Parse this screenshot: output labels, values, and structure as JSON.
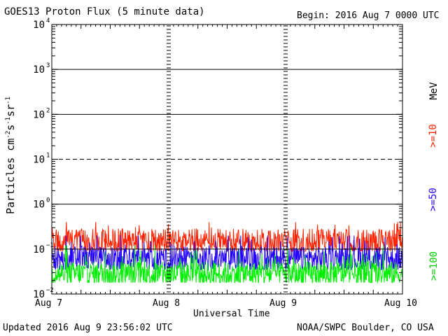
{
  "header": {
    "title": "GOES13 Proton Flux (5 minute data)",
    "begin": "Begin: 2016 Aug 7 0000 UTC"
  },
  "footer": {
    "updated": "Updated 2016 Aug  9 23:56:02 UTC",
    "source": "NOAA/SWPC Boulder, CO USA"
  },
  "chart_data": {
    "type": "line",
    "title": "GOES13 Proton Flux (5 minute data)",
    "xlabel": "Universal Time",
    "ylabel": "Particles cm-2s-1sr-1",
    "yscale": "log",
    "ylim": [
      0.01,
      10000
    ],
    "xlim": [
      "2016-08-07T00:00",
      "2016-08-10T00:00"
    ],
    "x_ticks": [
      "Aug 7",
      "Aug 8",
      "Aug 9",
      "Aug 10"
    ],
    "y_ticks": [
      "10-2",
      "10-1",
      "100",
      "101",
      "102",
      "103",
      "104"
    ],
    "unit_label": "MeV",
    "grid": true,
    "series": [
      {
        "name": ">=10",
        "color": "#ff2200",
        "typical": 0.15,
        "min": 0.09,
        "max": 0.4
      },
      {
        "name": ">=50",
        "color": "#2200ff",
        "typical": 0.06,
        "min": 0.035,
        "max": 0.2
      },
      {
        "name": ">=100",
        "color": "#00ee00",
        "typical": 0.028,
        "min": 0.018,
        "max": 0.12
      }
    ]
  }
}
